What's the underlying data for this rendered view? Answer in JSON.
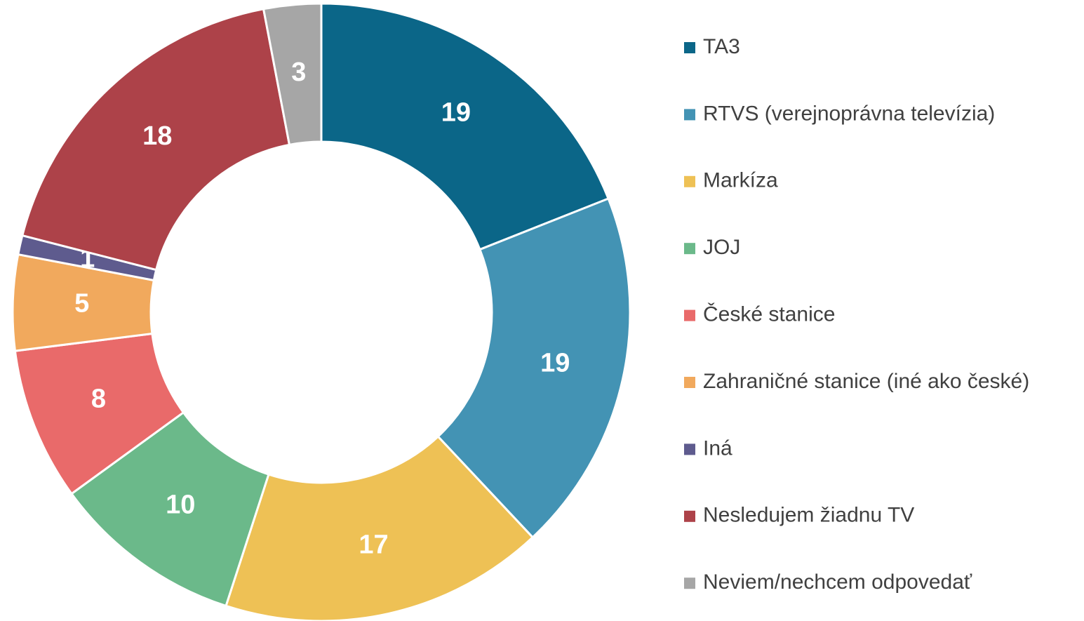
{
  "chart_data": {
    "type": "donut",
    "categories": [
      "TA3",
      "RTVS (verejnoprávna televízia)",
      "Markíza",
      "JOJ",
      "České stanice",
      "Zahraničné stanice (iné ako české)",
      "Iná",
      "Nesledujem žiadnu TV",
      "Neviem/nechcem odpovedať"
    ],
    "values": [
      19,
      19,
      17,
      10,
      8,
      5,
      1,
      18,
      3
    ],
    "colors": [
      "#0b6688",
      "#4393b4",
      "#eec155",
      "#6bb98a",
      "#e96a6a",
      "#f1a95d",
      "#5e5b8e",
      "#ad4249",
      "#a6a6a6"
    ],
    "legend": "right"
  }
}
